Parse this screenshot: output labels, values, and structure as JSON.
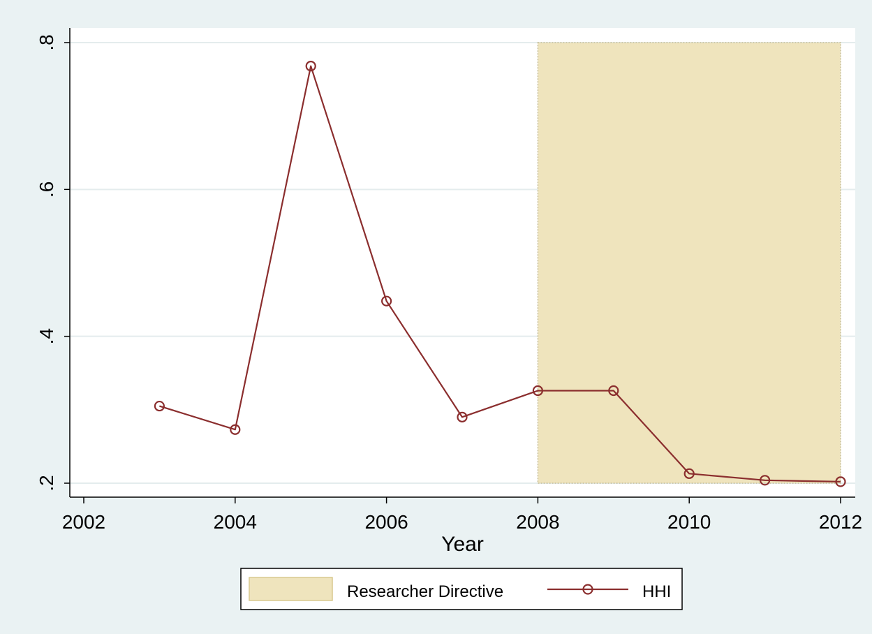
{
  "chart_data": {
    "type": "line",
    "title": "",
    "xlabel": "Year",
    "ylabel": "",
    "xlim": [
      2002,
      2012
    ],
    "ylim": [
      0.2,
      0.8
    ],
    "x_ticks": [
      2002,
      2004,
      2006,
      2008,
      2010,
      2012
    ],
    "x_tick_labels": [
      "2002",
      "2004",
      "2006",
      "2008",
      "2010",
      "2012"
    ],
    "y_ticks": [
      0.2,
      0.4,
      0.6,
      0.8
    ],
    "y_tick_labels": [
      ".2",
      ".4",
      ".6",
      ".8"
    ],
    "grid": "horizontal",
    "shaded_region": {
      "name": "Researcher Directive",
      "x_start": 2008,
      "x_end": 2012,
      "y_start": 0.2,
      "y_end": 0.8,
      "color": "#efe4bd"
    },
    "series": [
      {
        "name": "HHI",
        "color": "#8b2e2e",
        "marker": "hollow-circle",
        "x": [
          2003,
          2004,
          2005,
          2006,
          2007,
          2008,
          2009,
          2010,
          2011,
          2012
        ],
        "y": [
          0.305,
          0.273,
          0.768,
          0.448,
          0.29,
          0.326,
          0.326,
          0.213,
          0.204,
          0.202
        ]
      }
    ],
    "legend": {
      "placement": "bottom-center",
      "entries": [
        "Researcher Directive",
        "HHI"
      ]
    },
    "colors": {
      "outer_background": "#eaf2f3",
      "plot_background": "#ffffff",
      "grid": "#e4eced",
      "axis": "#000000"
    }
  }
}
